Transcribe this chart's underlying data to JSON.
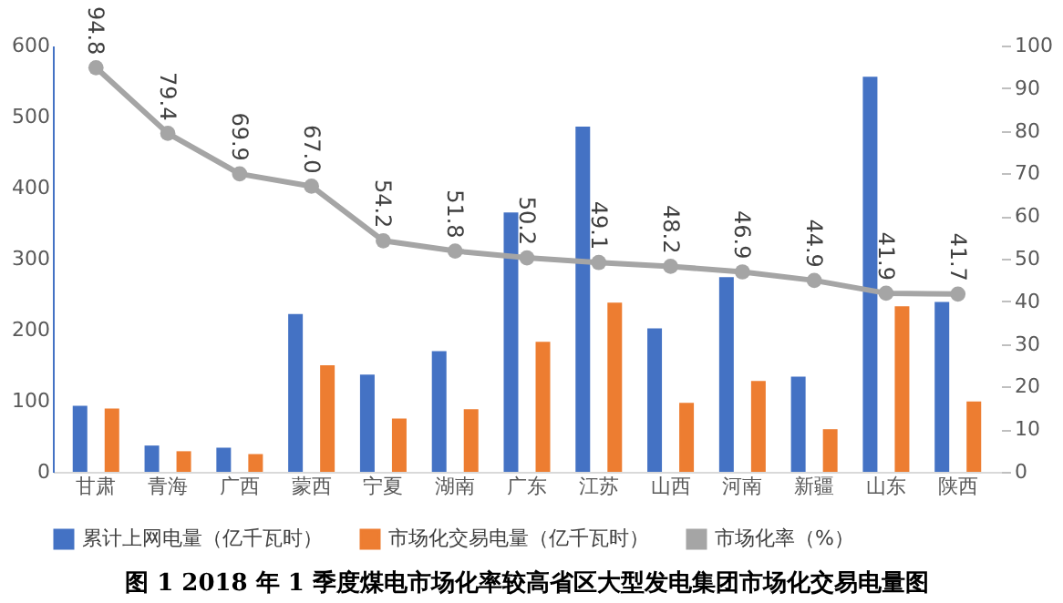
{
  "chart_data": {
    "type": "bar",
    "title": "图 1 2018 年 1 季度煤电市场化率较高省区大型发电集团市场化交易电量图",
    "categories": [
      "甘肃",
      "青海",
      "广西",
      "蒙西",
      "宁夏",
      "湖南",
      "广东",
      "江苏",
      "山西",
      "河南",
      "新疆",
      "山东",
      "陕西"
    ],
    "series": [
      {
        "name": "累计上网电量（亿千瓦时）",
        "color": "#4472c4",
        "values": [
          93,
          37,
          34,
          222,
          137,
          170,
          365,
          486,
          202,
          274,
          134,
          556,
          239
        ]
      },
      {
        "name": "市场化交易电量（亿千瓦时）",
        "color": "#ed7d31",
        "values": [
          89,
          29,
          25,
          150,
          75,
          88,
          183,
          238,
          97,
          128,
          60,
          233,
          99
        ]
      },
      {
        "name": "市场化率（%）",
        "type": "line",
        "axis": "y2",
        "color": "#a5a5a5",
        "marker": "circle",
        "value_labels": [
          "94.8",
          "79.4",
          "69.9",
          "67.0",
          "54.2",
          "51.8",
          "50.2",
          "49.1",
          "48.2",
          "46.9",
          "44.9",
          "41.9",
          "41.7"
        ],
        "values": [
          94.8,
          79.4,
          69.9,
          67.0,
          54.2,
          51.8,
          50.2,
          49.1,
          48.2,
          46.9,
          44.9,
          41.9,
          41.7
        ]
      }
    ],
    "ylim": [
      0,
      600
    ],
    "yticks": [
      0,
      100,
      200,
      300,
      400,
      500,
      600
    ],
    "y2lim": [
      0,
      100
    ],
    "y2ticks": [
      0,
      10,
      20,
      30,
      40,
      50,
      60,
      70,
      80,
      90,
      100
    ],
    "grid": false,
    "legend": "bottom"
  }
}
